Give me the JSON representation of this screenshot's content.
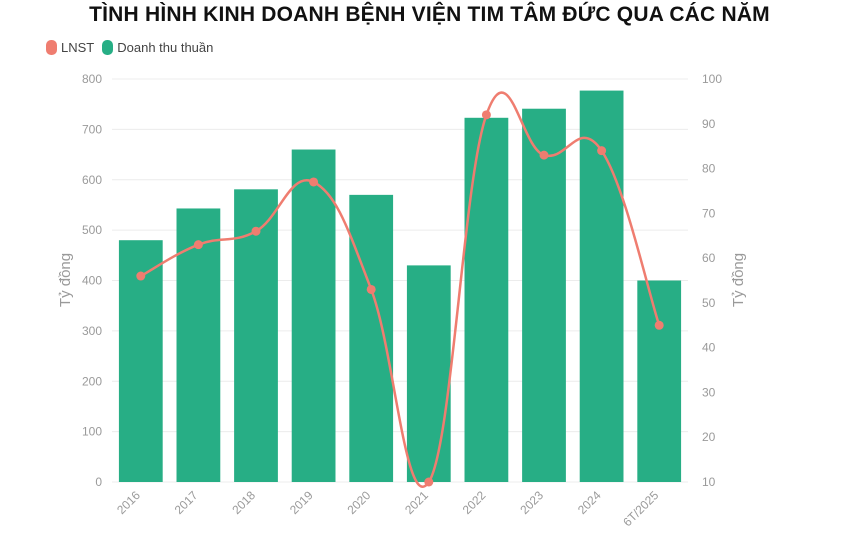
{
  "chart_data": {
    "type": "bar",
    "title": "TÌNH HÌNH KINH DOANH BỆNH VIỆN TIM TÂM ĐỨC QUA CÁC NĂM",
    "categories": [
      "2016",
      "2017",
      "2018",
      "2019",
      "2020",
      "2021",
      "2022",
      "2023",
      "2024",
      "6T/2025"
    ],
    "series": [
      {
        "name": "Doanh thu thuần",
        "type": "bar",
        "axis": "left",
        "color": "#27ae85",
        "values": [
          480,
          543,
          581,
          660,
          570,
          430,
          723,
          741,
          777,
          400
        ]
      },
      {
        "name": "LNST",
        "type": "line",
        "axis": "right",
        "color": "#ef7d70",
        "values": [
          56,
          63,
          66,
          77,
          53,
          10,
          92,
          83,
          84,
          45
        ]
      }
    ],
    "y_left": {
      "label": "Tỷ đồng",
      "lim": [
        0,
        800
      ],
      "ticks": [
        "0",
        "100",
        "200",
        "300",
        "400",
        "500",
        "600",
        "700",
        "800"
      ]
    },
    "y_right": {
      "label": "Tỷ đồng",
      "lim": [
        10,
        100
      ],
      "ticks": [
        "10",
        "20",
        "30",
        "40",
        "50",
        "60",
        "70",
        "80",
        "90",
        "100"
      ]
    },
    "legend": {
      "position": "top-left",
      "items": [
        "LNST",
        "Doanh thu thuần"
      ]
    },
    "grid": true
  }
}
